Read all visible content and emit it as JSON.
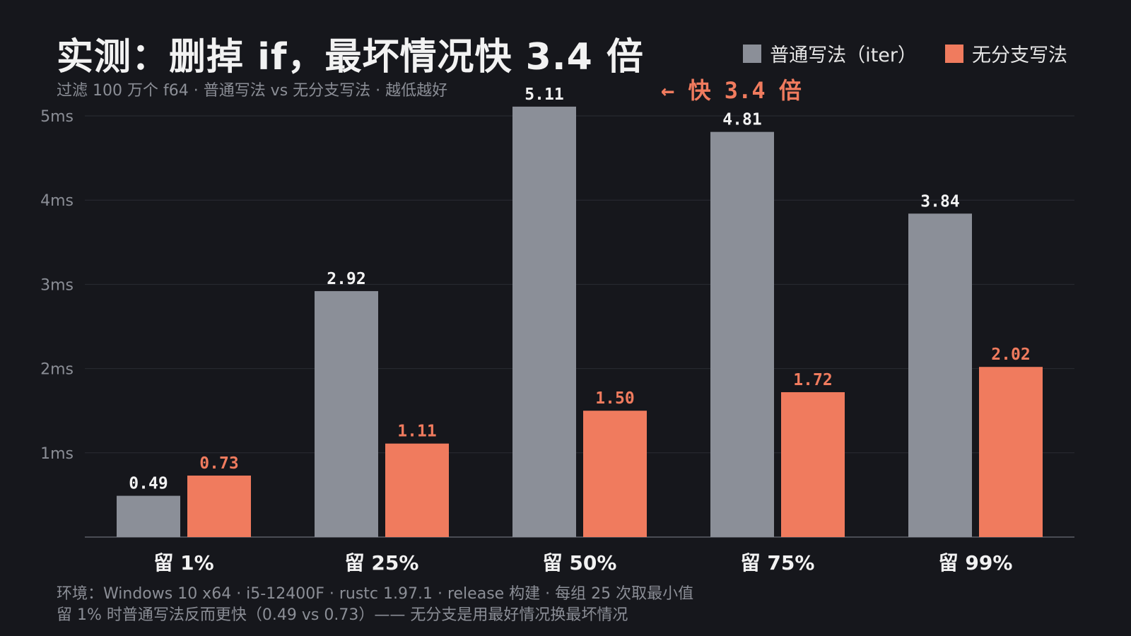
{
  "header": {
    "title": "实测：删掉 if，最坏情况快 3.4 倍",
    "subtitle": "过滤 100 万个 f64 · 普通写法 vs 无分支写法 · 越低越好"
  },
  "legend": {
    "items": [
      {
        "label": "普通写法（iter）",
        "color": "#8b8f98"
      },
      {
        "label": "无分支写法",
        "color": "#f07b5e"
      }
    ]
  },
  "annotation": {
    "text": "← 快 3.4 倍",
    "color": "#f07b5e"
  },
  "footer": {
    "line1": "环境：Windows 10 x64 · i5-12400F · rustc 1.97.1 · release 构建 · 每组 25 次取最小值",
    "line2": "留 1% 时普通写法反而更快（0.49 vs 0.73）—— 无分支是用最好情况换最坏情况"
  },
  "chart_data": {
    "type": "bar",
    "categories": [
      "留 1%",
      "留 25%",
      "留 50%",
      "留 75%",
      "留 99%"
    ],
    "series": [
      {
        "name": "普通写法（iter）",
        "values": [
          0.49,
          2.92,
          5.11,
          4.81,
          3.84
        ],
        "color": "#8b8f98",
        "label_color": "#f2f2f2"
      },
      {
        "name": "无分支写法",
        "values": [
          0.73,
          1.11,
          1.5,
          1.72,
          2.02
        ],
        "color": "#f07b5e",
        "label_color": "#f07b5e"
      }
    ],
    "y_ticks": [
      "1ms",
      "2ms",
      "3ms",
      "4ms",
      "5ms"
    ],
    "y_tick_values": [
      1,
      2,
      3,
      4,
      5
    ],
    "ylim": [
      0,
      5
    ],
    "grid": true
  }
}
